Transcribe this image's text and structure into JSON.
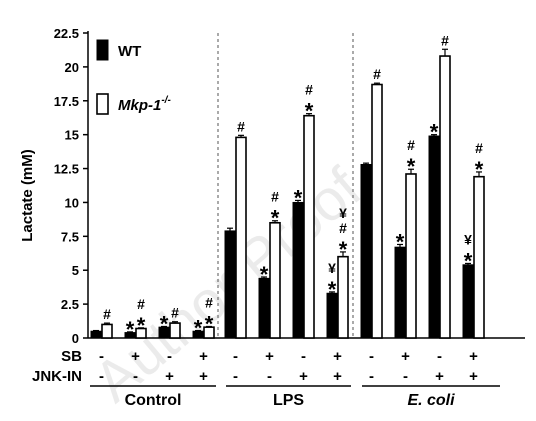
{
  "chart_data": {
    "type": "bar",
    "ylabel": "Lactate (mM)",
    "ylim": [
      0,
      22.5
    ],
    "yticks": [
      "0",
      "2.5",
      "5",
      "7.5",
      "10",
      "12.5",
      "15",
      "17.5",
      "20",
      "22.5"
    ],
    "legend": [
      {
        "name": "WT",
        "color": "#000000"
      },
      {
        "name": "Mkp-1",
        "superscript": "-/-",
        "color": "#ffffff"
      }
    ],
    "groups": [
      "Control",
      "LPS",
      "E. coli"
    ],
    "treatment_labels": {
      "row1": "SB",
      "row2": "JNK-IN"
    },
    "treatments": [
      {
        "sb": "-",
        "jnk": "-"
      },
      {
        "sb": "+",
        "jnk": "-"
      },
      {
        "sb": "-",
        "jnk": "+"
      },
      {
        "sb": "+",
        "jnk": "+"
      }
    ],
    "series": [
      {
        "name": "WT",
        "values": [
          0.5,
          0.4,
          0.8,
          0.5,
          7.9,
          4.4,
          10.0,
          3.3,
          12.8,
          6.7,
          14.9,
          5.4
        ],
        "errors": [
          0.05,
          0.05,
          0.05,
          0.05,
          0.2,
          0.1,
          0.15,
          0.1,
          0.1,
          0.2,
          0.1,
          0.1
        ],
        "annotations": [
          [],
          [
            "*"
          ],
          [
            "*"
          ],
          [
            "*"
          ],
          [],
          [
            "*"
          ],
          [
            "*"
          ],
          [
            "*",
            "¥"
          ],
          [],
          [
            "*"
          ],
          [
            "*"
          ],
          [
            "*",
            "¥"
          ]
        ]
      },
      {
        "name": "Mkp-1-/-",
        "values": [
          1.0,
          0.7,
          1.1,
          0.8,
          14.8,
          8.5,
          16.4,
          6.0,
          18.7,
          12.1,
          20.8,
          11.9
        ],
        "errors": [
          0.1,
          0.05,
          0.1,
          0.05,
          0.15,
          0.15,
          0.15,
          0.35,
          0.1,
          0.35,
          0.5,
          0.35
        ],
        "annotations": [
          [
            "#"
          ],
          [
            "*",
            "#"
          ],
          [
            "#"
          ],
          [
            "*",
            "#"
          ],
          [
            "#"
          ],
          [
            "*",
            "#"
          ],
          [
            "*",
            "#"
          ],
          [
            "*",
            "#",
            "¥"
          ],
          [
            "#"
          ],
          [
            "*",
            "#"
          ],
          [
            "#"
          ],
          [
            "*",
            "#"
          ]
        ]
      }
    ],
    "watermark": "Author Proof"
  }
}
